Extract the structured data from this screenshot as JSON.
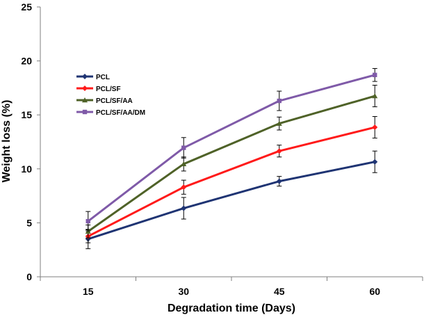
{
  "chart_data": {
    "type": "line",
    "title": "",
    "xlabel": "Degradation time (Days)",
    "ylabel": "Weight loss (%)",
    "x": [
      15,
      30,
      45,
      60
    ],
    "xlim": [
      7.5,
      67.5
    ],
    "ylim": [
      0,
      25
    ],
    "xticks": [
      "15",
      "30",
      "45",
      "60"
    ],
    "yticks": [
      "0",
      "5",
      "10",
      "15",
      "20",
      "25"
    ],
    "grid": false,
    "legend_position": "upper-left",
    "series": [
      {
        "name": "PCL",
        "color": "#1f3473",
        "marker": "diamond",
        "values": [
          3.5,
          6.35,
          8.85,
          10.65
        ],
        "errors": [
          0.9,
          1.0,
          0.45,
          1.0
        ]
      },
      {
        "name": "PCL/SF",
        "color": "#ff1a1a",
        "marker": "diamond",
        "values": [
          3.75,
          8.3,
          11.65,
          13.85
        ],
        "errors": [
          0.6,
          0.65,
          0.55,
          1.0
        ]
      },
      {
        "name": "PCL/SF/AA",
        "color": "#4f6228",
        "marker": "triangle",
        "values": [
          4.2,
          10.45,
          14.2,
          16.75
        ],
        "errors": [
          0.6,
          0.65,
          0.6,
          1.0
        ]
      },
      {
        "name": "PCL/SF/AA/DM",
        "color": "#7f5aa8",
        "marker": "square",
        "values": [
          5.15,
          11.95,
          16.3,
          18.7
        ],
        "errors": [
          0.9,
          0.95,
          0.9,
          0.6
        ]
      }
    ]
  }
}
